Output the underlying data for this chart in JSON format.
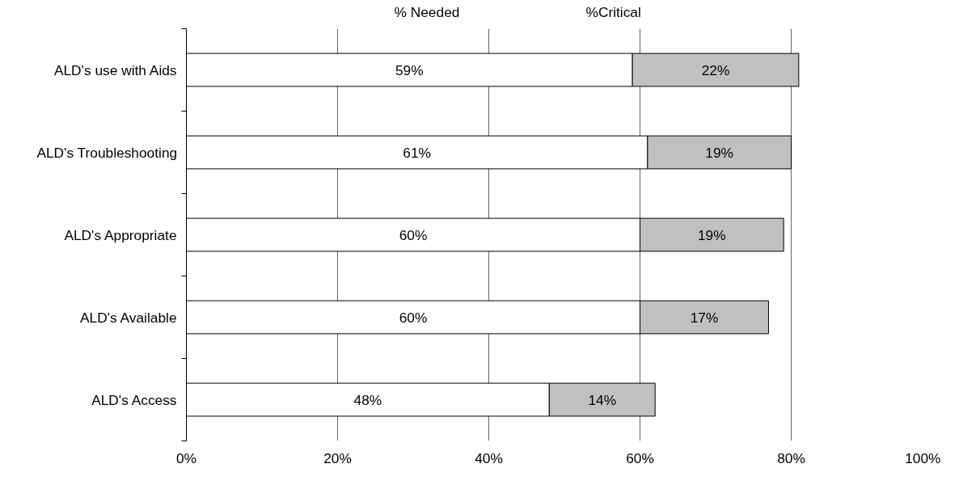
{
  "chart_data": {
    "type": "bar",
    "orientation": "horizontal",
    "stacked": true,
    "categories": [
      "ALD's use with Aids",
      "ALD's Troubleshooting",
      "ALD's Appropriate",
      "ALD's Available",
      "ALD's Access"
    ],
    "series": [
      {
        "name": "% Needed",
        "color": "#ffffff",
        "values": [
          59,
          61,
          60,
          60,
          48
        ],
        "value_labels": [
          "59%",
          "61%",
          "60%",
          "60%",
          "48%"
        ]
      },
      {
        "name": "%Critical",
        "color": "#c0c0c0",
        "values": [
          22,
          19,
          19,
          17,
          14
        ],
        "value_labels": [
          "22%",
          "19%",
          "19%",
          "17%",
          "14%"
        ]
      }
    ],
    "xlim": [
      0,
      100
    ],
    "xticks": [
      {
        "value": 0,
        "label": "0%"
      },
      {
        "value": 20,
        "label": "20%"
      },
      {
        "value": 40,
        "label": "40%"
      },
      {
        "value": 60,
        "label": "60%"
      },
      {
        "value": 80,
        "label": "80%"
      },
      {
        "value": 100,
        "label": "100%"
      }
    ],
    "grid": "x",
    "legend": "top"
  }
}
